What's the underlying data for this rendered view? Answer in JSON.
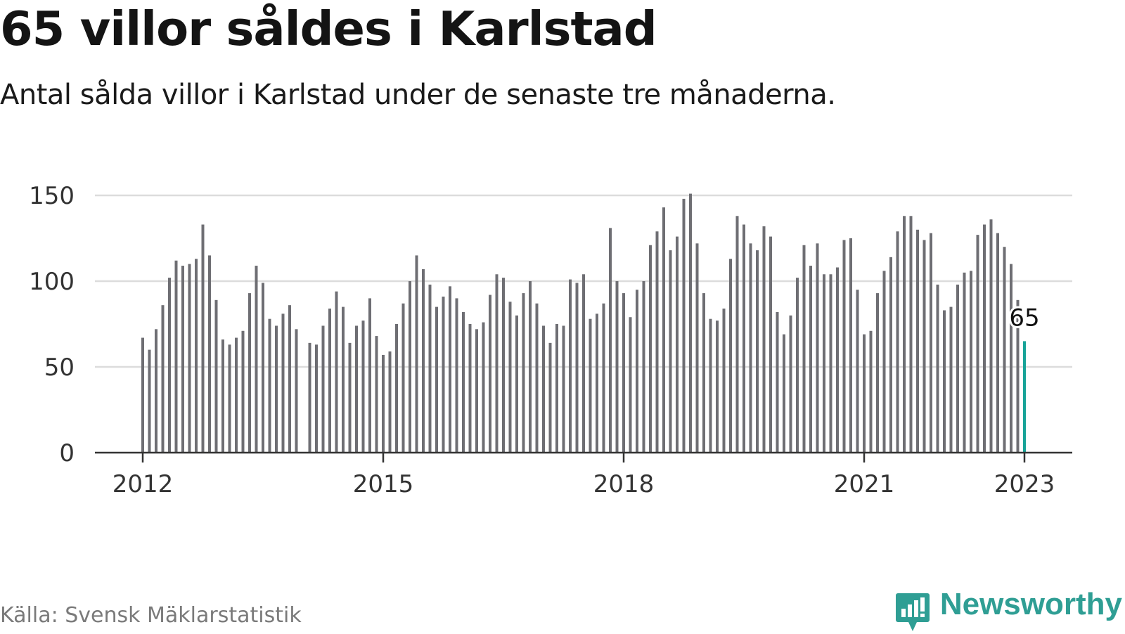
{
  "title": "65 villor såldes i Karlstad",
  "subtitle": "Antal sålda villor i Karlstad under de senaste tre månaderna.",
  "source": "Källa: Svensk Mäklarstatistik",
  "brand": {
    "name": "Newsworthy",
    "icon": "newsworthy-logo-icon"
  },
  "colors": {
    "bar": "#6e6e73",
    "highlight": "#17a398",
    "grid": "#dcdcdc",
    "axis": "#333333",
    "brand": "#2f9e94"
  },
  "chart_data": {
    "type": "bar",
    "x_label_step_months": 1,
    "start": "2012-01",
    "end": "2023-01",
    "ylim": [
      0,
      150
    ],
    "yticks": [
      0,
      50,
      100,
      150
    ],
    "xtick_labels": [
      "2012",
      "2015",
      "2018",
      "2021",
      "2023"
    ],
    "grid": true,
    "highlight_last": true,
    "last_value_label": "65",
    "series": [
      {
        "values": [
          67,
          60,
          72,
          86,
          102,
          112,
          109,
          110,
          113,
          133,
          115,
          89,
          66,
          63,
          67,
          71,
          93,
          109,
          99,
          78,
          74,
          81,
          86,
          72,
          null,
          64,
          63,
          74,
          84,
          94,
          85,
          64,
          74,
          77,
          90,
          68,
          57,
          59,
          75,
          87,
          100,
          115,
          107,
          98,
          85,
          91,
          97,
          90,
          82,
          75,
          72,
          76,
          92,
          104,
          102,
          88,
          80,
          93,
          100,
          87,
          74,
          64,
          75,
          74,
          101,
          99,
          104,
          78,
          81,
          87,
          131,
          100,
          93,
          79,
          95,
          100,
          121,
          129,
          143,
          118,
          126,
          148,
          151,
          122,
          93,
          78,
          77,
          84,
          113,
          138,
          133,
          122,
          118,
          132,
          126,
          82,
          69,
          80,
          102,
          121,
          109,
          122,
          104,
          104,
          108,
          124,
          125,
          95,
          69,
          71,
          93,
          106,
          114,
          129,
          138,
          138,
          130,
          124,
          128,
          98,
          83,
          85,
          98,
          105,
          106,
          127,
          133,
          136,
          128,
          120,
          110,
          89,
          65
        ]
      }
    ]
  }
}
